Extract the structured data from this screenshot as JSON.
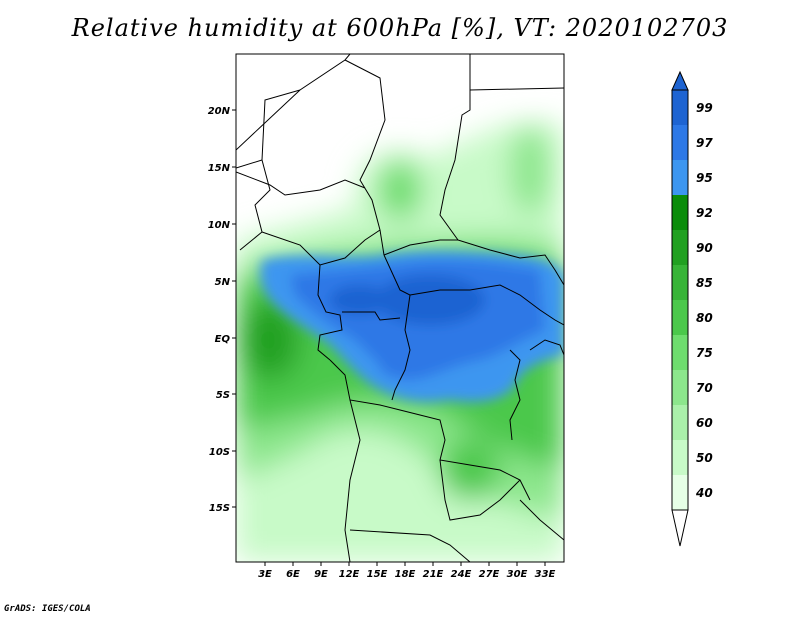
{
  "title": "Relative humidity at 600hPa [%], VT: 2020102703",
  "credit": "GrADS: IGES/COLA",
  "map": {
    "variable": "Relative humidity",
    "level": "600hPa",
    "units": "%",
    "valid_time": "2020102703",
    "lat_ticks": [
      "20N",
      "15N",
      "10N",
      "5N",
      "EQ",
      "5S",
      "10S",
      "15S"
    ],
    "lon_ticks": [
      "3E",
      "6E",
      "9E",
      "12E",
      "15E",
      "18E",
      "21E",
      "24E",
      "27E",
      "30E",
      "33E"
    ]
  },
  "colorbar": {
    "labels": [
      "99",
      "97",
      "95",
      "92",
      "90",
      "85",
      "80",
      "75",
      "70",
      "60",
      "50",
      "40"
    ],
    "colors": [
      "#1e64d2",
      "#2d78e6",
      "#3c96f0",
      "#0a8c0a",
      "#21a021",
      "#37b437",
      "#4bc84b",
      "#6edc6e",
      "#8ce68c",
      "#aaf0aa",
      "#c8fac8",
      "#e6ffe6"
    ]
  }
}
